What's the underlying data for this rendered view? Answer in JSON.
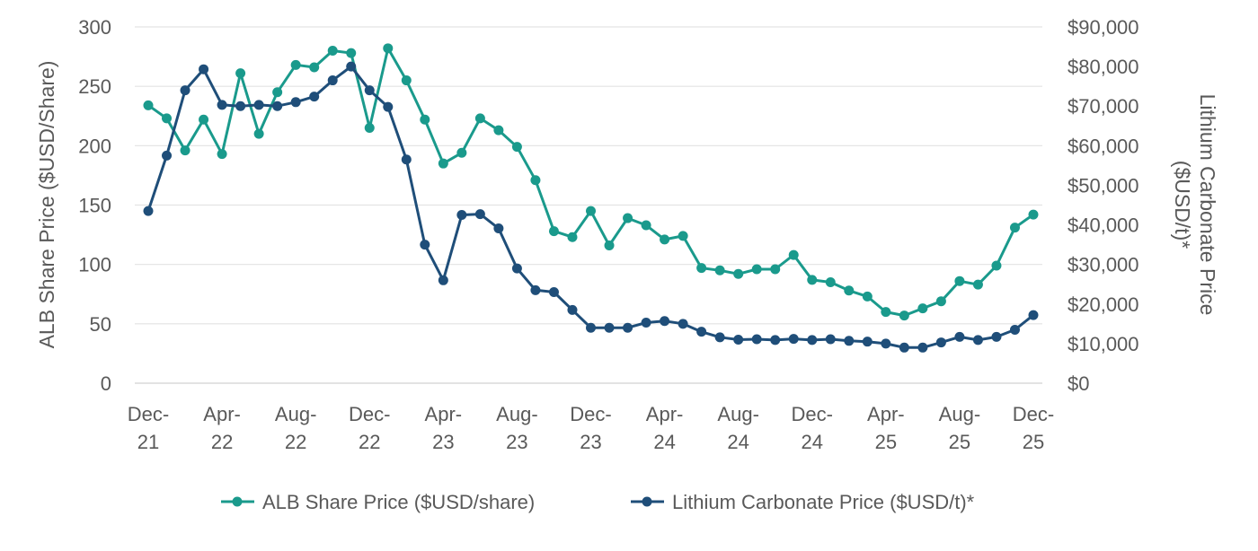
{
  "chart_data": {
    "type": "line",
    "title": "",
    "x_tick_labels": [
      [
        "Dec-",
        "21"
      ],
      [
        "Apr-",
        "22"
      ],
      [
        "Aug-",
        "22"
      ],
      [
        "Dec-",
        "22"
      ],
      [
        "Apr-",
        "23"
      ],
      [
        "Aug-",
        "23"
      ],
      [
        "Dec-",
        "23"
      ],
      [
        "Apr-",
        "24"
      ],
      [
        "Aug-",
        "24"
      ],
      [
        "Dec-",
        "24"
      ],
      [
        "Apr-",
        "25"
      ],
      [
        "Aug-",
        "25"
      ],
      [
        "Dec-",
        "25"
      ]
    ],
    "y_left": {
      "label": "ALB Share Price ($USD/Share)",
      "min": 0,
      "max": 300,
      "ticks": [
        "0",
        "50",
        "100",
        "150",
        "200",
        "250",
        "300"
      ]
    },
    "y_right": {
      "label_lines": [
        "Lithium Carbonate Price",
        "($USD/t)*"
      ],
      "min": 0,
      "max": 90000,
      "ticks": [
        "$0",
        "$10,000",
        "$20,000",
        "$30,000",
        "$40,000",
        "$50,000",
        "$60,000",
        "$70,000",
        "$80,000",
        "$90,000"
      ]
    },
    "grid": true,
    "legend_position": "bottom",
    "series": [
      {
        "name": "ALB Share Price ($USD/share)",
        "axis": "left",
        "color": "#1a9a8c",
        "values": [
          234,
          223,
          196,
          222,
          193,
          261,
          210,
          245,
          268,
          266,
          280,
          278,
          215,
          282,
          255,
          222,
          185,
          194,
          223,
          213,
          199,
          171,
          128,
          123,
          145,
          116,
          139,
          133,
          121,
          124,
          97,
          95,
          92,
          96,
          96,
          108,
          87,
          85,
          78,
          73,
          60,
          57,
          63,
          69,
          86,
          83,
          99,
          131,
          142
        ]
      },
      {
        "name": "Lithium Carbonate Price ($USD/t)*",
        "axis": "right",
        "color": "#1f4e79",
        "values": [
          43500,
          57500,
          74000,
          79300,
          70300,
          70000,
          70300,
          70000,
          71000,
          72400,
          76500,
          80000,
          74000,
          69800,
          56500,
          35000,
          26000,
          42500,
          42700,
          39100,
          29000,
          23500,
          23000,
          18500,
          14000,
          14000,
          14000,
          15300,
          15700,
          15000,
          13000,
          11600,
          11000,
          11100,
          10900,
          11200,
          10900,
          11100,
          10700,
          10500,
          10000,
          9000,
          9000,
          10300,
          11700,
          10900,
          11700,
          13500,
          17200
        ]
      }
    ]
  }
}
